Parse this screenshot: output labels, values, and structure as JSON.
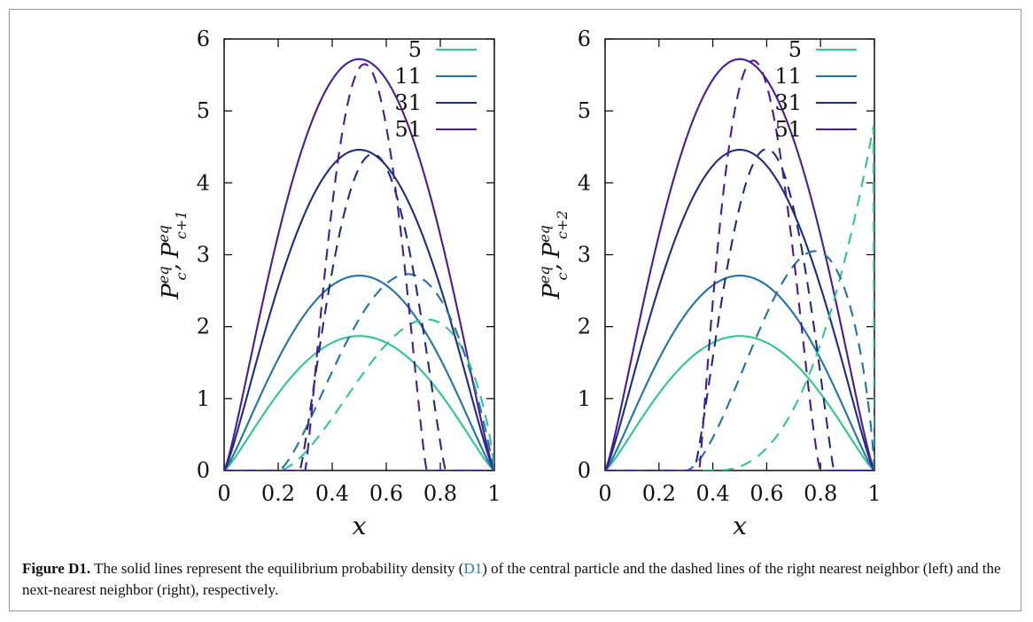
{
  "caption": {
    "label": "Figure D1.",
    "text_before": " The solid lines represent the equilibrium probability density (",
    "ref": "D1",
    "text_after": ") of the central particle and the dashed lines of the right nearest neighbor (left) and the next-nearest neighbor (right), respectively."
  },
  "colors": {
    "5": "#2ec88f",
    "11": "#1f74a8",
    "31": "#1c2d83",
    "51": "#4b1a9a"
  },
  "chart_data": [
    {
      "type": "line",
      "panel": "left",
      "xlabel": "x",
      "ylabel": {
        "base": "P",
        "sup": "eq",
        "sub1": "c",
        "sep": ",",
        "sub2": "c+1"
      },
      "xlim": [
        0,
        1
      ],
      "ylim": [
        0,
        6
      ],
      "xticks": [
        "0",
        "0.2",
        "0.4",
        "0.6",
        "0.8",
        "1"
      ],
      "yticks": [
        "0",
        "1",
        "2",
        "3",
        "4",
        "5",
        "6"
      ],
      "legend_position": "top-right",
      "legend": [
        "5",
        "11",
        "31",
        "51"
      ],
      "series": [
        {
          "name": "5",
          "style": "solid",
          "peak_x": 0.5,
          "peak_y": 1.87,
          "support": [
            0,
            1
          ]
        },
        {
          "name": "11",
          "style": "solid",
          "peak_x": 0.5,
          "peak_y": 2.71,
          "support": [
            0,
            1
          ]
        },
        {
          "name": "31",
          "style": "solid",
          "peak_x": 0.5,
          "peak_y": 4.46,
          "support": [
            0,
            1
          ]
        },
        {
          "name": "51",
          "style": "solid",
          "peak_x": 0.5,
          "peak_y": 5.72,
          "support": [
            0,
            1
          ]
        },
        {
          "name": "5",
          "style": "dashed",
          "peak_x": 0.75,
          "peak_y": 2.1,
          "support": [
            0.2,
            1
          ]
        },
        {
          "name": "11",
          "style": "dashed",
          "peak_x": 0.68,
          "peak_y": 2.73,
          "support": [
            0.2,
            1
          ]
        },
        {
          "name": "31",
          "style": "dashed",
          "peak_x": 0.55,
          "peak_y": 4.4,
          "support": [
            0.28,
            0.82
          ]
        },
        {
          "name": "51",
          "style": "dashed",
          "peak_x": 0.52,
          "peak_y": 5.65,
          "support": [
            0.3,
            0.75
          ]
        }
      ]
    },
    {
      "type": "line",
      "panel": "right",
      "xlabel": "x",
      "ylabel": {
        "base": "P",
        "sup": "eq",
        "sub1": "c",
        "sep": ",",
        "sub2": "c+2"
      },
      "xlim": [
        0,
        1
      ],
      "ylim": [
        0,
        6
      ],
      "xticks": [
        "0",
        "0.2",
        "0.4",
        "0.6",
        "0.8",
        "1"
      ],
      "yticks": [
        "0",
        "1",
        "2",
        "3",
        "4",
        "5",
        "6"
      ],
      "legend_position": "top-right",
      "legend": [
        "5",
        "11",
        "31",
        "51"
      ],
      "series": [
        {
          "name": "5",
          "style": "solid",
          "peak_x": 0.5,
          "peak_y": 1.87,
          "support": [
            0,
            1
          ]
        },
        {
          "name": "11",
          "style": "solid",
          "peak_x": 0.5,
          "peak_y": 2.71,
          "support": [
            0,
            1
          ]
        },
        {
          "name": "31",
          "style": "solid",
          "peak_x": 0.5,
          "peak_y": 4.46,
          "support": [
            0,
            1
          ]
        },
        {
          "name": "51",
          "style": "solid",
          "peak_x": 0.5,
          "peak_y": 5.72,
          "support": [
            0,
            1
          ]
        },
        {
          "name": "5",
          "style": "dashed",
          "peak_x": 1.0,
          "peak_y": 4.85,
          "support": [
            0.4,
            1
          ]
        },
        {
          "name": "11",
          "style": "dashed",
          "peak_x": 0.78,
          "peak_y": 3.05,
          "support": [
            0.3,
            1
          ]
        },
        {
          "name": "31",
          "style": "dashed",
          "peak_x": 0.6,
          "peak_y": 4.47,
          "support": [
            0.33,
            0.85
          ]
        },
        {
          "name": "51",
          "style": "dashed",
          "peak_x": 0.55,
          "peak_y": 5.7,
          "support": [
            0.35,
            0.8
          ]
        }
      ]
    }
  ]
}
